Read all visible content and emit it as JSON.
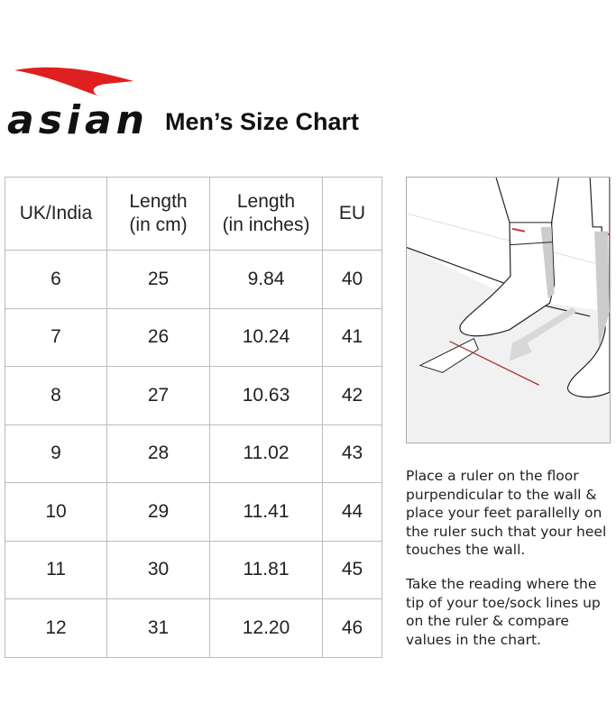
{
  "brand": {
    "logo_text": "asian",
    "logo_color": "#e02020"
  },
  "title": "Men’s Size Chart",
  "table": {
    "headers": [
      [
        "UK/India",
        ""
      ],
      [
        "Length",
        "(in cm)"
      ],
      [
        "Length",
        "(in inches)"
      ],
      [
        "EU",
        ""
      ]
    ],
    "rows": [
      [
        "6",
        "25",
        "9.84",
        "40"
      ],
      [
        "7",
        "26",
        "10.24",
        "41"
      ],
      [
        "8",
        "27",
        "10.63",
        "42"
      ],
      [
        "9",
        "28",
        "11.02",
        "43"
      ],
      [
        "10",
        "29",
        "11.41",
        "44"
      ],
      [
        "11",
        "30",
        "11.81",
        "45"
      ],
      [
        "12",
        "31",
        "12.20",
        "46"
      ]
    ]
  },
  "instructions": [
    "Place a ruler on the floor purpendicular to the wall & place your feet parallelly on the ruler such that your heel touches the wall.",
    "Take the reading where the tip of your toe/sock lines up on the ruler & compare values in the chart."
  ]
}
